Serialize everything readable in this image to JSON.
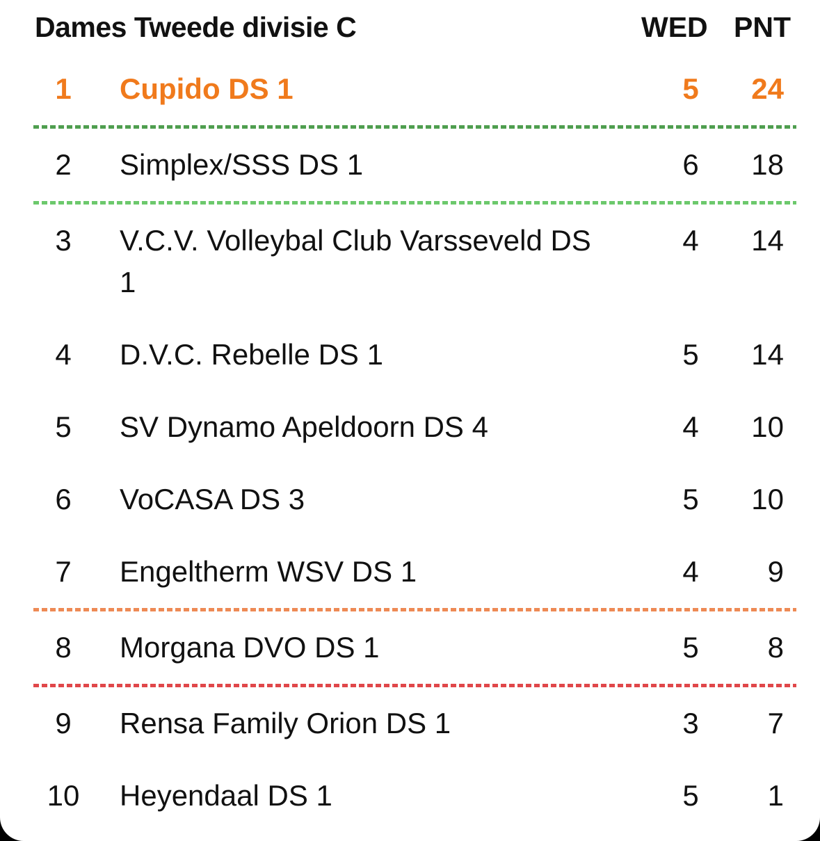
{
  "header": {
    "title": "Dames Tweede divisie C",
    "wed_label": "WED",
    "pnt_label": "PNT"
  },
  "colors": {
    "highlight": "#f07a1c",
    "promotion": "#4f9e4f",
    "promotion_playoff": "#6cc96c",
    "relegation_playoff": "#ee8a55",
    "relegation": "#e0474a"
  },
  "standings": [
    {
      "rank": "1",
      "team": "Cupido DS 1",
      "wed": "5",
      "pnt": "24"
    },
    {
      "rank": "2",
      "team": "Simplex/SSS DS 1",
      "wed": "6",
      "pnt": "18"
    },
    {
      "rank": "3",
      "team": "V.C.V. Volleybal Club Varsseveld DS 1",
      "wed": "4",
      "pnt": "14"
    },
    {
      "rank": "4",
      "team": "D.V.C. Rebelle DS 1",
      "wed": "5",
      "pnt": "14"
    },
    {
      "rank": "5",
      "team": "SV Dynamo Apeldoorn DS 4",
      "wed": "4",
      "pnt": "10"
    },
    {
      "rank": "6",
      "team": "VoCASA DS 3",
      "wed": "5",
      "pnt": "10"
    },
    {
      "rank": "7",
      "team": "Engeltherm WSV DS 1",
      "wed": "4",
      "pnt": "9"
    },
    {
      "rank": "8",
      "team": "Morgana DVO DS 1",
      "wed": "5",
      "pnt": "8"
    },
    {
      "rank": "9",
      "team": "Rensa Family Orion DS 1",
      "wed": "3",
      "pnt": "7"
    },
    {
      "rank": "10",
      "team": "Heyendaal DS 1",
      "wed": "5",
      "pnt": "1"
    }
  ]
}
